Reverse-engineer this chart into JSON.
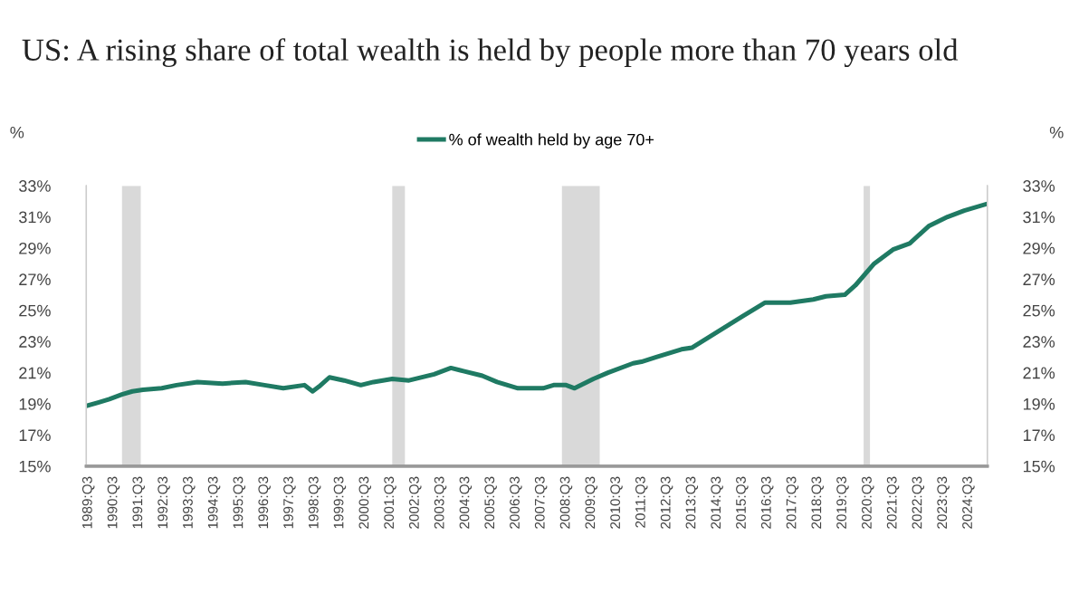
{
  "chart_data": {
    "type": "line",
    "title": "US: A rising share of total wealth is held by people more than 70 years old",
    "ylabel": "%",
    "y2label": "%",
    "series": [
      {
        "name": "% of wealth held by age 70+",
        "color": "#1f7a63",
        "x": [
          "1989-07",
          "1989-12",
          "1990-05",
          "1990-11",
          "1991-04",
          "1991-09",
          "1992-06",
          "1993-01",
          "1993-11",
          "1994-11",
          "1995-10",
          "1996-07",
          "1997-04",
          "1998-02",
          "1998-06",
          "1998-09",
          "1999-02",
          "1999-09",
          "2000-05",
          "2000-11",
          "2001-08",
          "2002-04",
          "2003-04",
          "2003-12",
          "2004-06",
          "2005-03",
          "2005-10",
          "2006-08",
          "2007-08",
          "2008-01",
          "2008-07",
          "2008-11",
          "2009-08",
          "2010-03",
          "2011-03",
          "2011-07",
          "2012-02",
          "2013-02",
          "2013-07",
          "2014-07",
          "2015-07",
          "2016-06",
          "2017-06",
          "2018-05",
          "2018-11",
          "2019-08",
          "2020-01",
          "2020-10",
          "2021-07",
          "2022-03",
          "2022-12",
          "2023-09",
          "2024-05",
          "2025-03"
        ],
        "values": [
          18.9,
          19.1,
          19.3,
          19.6,
          19.8,
          19.9,
          20.0,
          20.2,
          20.4,
          20.3,
          20.4,
          20.2,
          20.0,
          20.2,
          19.8,
          20.1,
          20.7,
          20.5,
          20.2,
          20.4,
          20.6,
          20.5,
          20.9,
          21.3,
          21.1,
          20.8,
          20.4,
          20.0,
          20.0,
          20.2,
          20.2,
          20.0,
          20.6,
          21.0,
          21.6,
          21.7,
          22.0,
          22.5,
          22.6,
          23.6,
          24.6,
          25.5,
          25.5,
          25.7,
          25.9,
          26.0,
          26.6,
          28.0,
          28.9,
          29.3,
          30.4,
          31.0,
          31.4,
          31.8
        ]
      }
    ],
    "xlim": [
      "1989-06",
      "2025-04"
    ],
    "xticks": [
      {
        "value": "1989-07",
        "label": "1989:Q3"
      },
      {
        "value": "1990-07",
        "label": "1990:Q3"
      },
      {
        "value": "1991-07",
        "label": "1991:Q3"
      },
      {
        "value": "1992-07",
        "label": "1992:Q3"
      },
      {
        "value": "1993-07",
        "label": "1993:Q3"
      },
      {
        "value": "1994-07",
        "label": "1994:Q3"
      },
      {
        "value": "1995-07",
        "label": "1995:Q3"
      },
      {
        "value": "1996-07",
        "label": "1996:Q3"
      },
      {
        "value": "1997-07",
        "label": "1997:Q3"
      },
      {
        "value": "1998-07",
        "label": "1998:Q3"
      },
      {
        "value": "1999-07",
        "label": "1999:Q3"
      },
      {
        "value": "2000-07",
        "label": "2000:Q3"
      },
      {
        "value": "2001-07",
        "label": "2001:Q3"
      },
      {
        "value": "2002-07",
        "label": "2002:Q3"
      },
      {
        "value": "2003-07",
        "label": "2003:Q3"
      },
      {
        "value": "2004-07",
        "label": "2004:Q3"
      },
      {
        "value": "2005-07",
        "label": "2005:Q3"
      },
      {
        "value": "2006-07",
        "label": "2006:Q3"
      },
      {
        "value": "2007-07",
        "label": "2007:Q3"
      },
      {
        "value": "2008-07",
        "label": "2008:Q3"
      },
      {
        "value": "2009-07",
        "label": "2009:Q3"
      },
      {
        "value": "2010-07",
        "label": "2010:Q3"
      },
      {
        "value": "2011-07",
        "label": "2011:Q3"
      },
      {
        "value": "2012-07",
        "label": "2012:Q3"
      },
      {
        "value": "2013-07",
        "label": "2013:Q3"
      },
      {
        "value": "2014-07",
        "label": "2014:Q3"
      },
      {
        "value": "2015-07",
        "label": "2015:Q3"
      },
      {
        "value": "2016-07",
        "label": "2016:Q3"
      },
      {
        "value": "2017-07",
        "label": "2017:Q3"
      },
      {
        "value": "2018-07",
        "label": "2018:Q3"
      },
      {
        "value": "2019-07",
        "label": "2019:Q3"
      },
      {
        "value": "2020-07",
        "label": "2020:Q3"
      },
      {
        "value": "2021-07",
        "label": "2021:Q3"
      },
      {
        "value": "2022-07",
        "label": "2022:Q3"
      },
      {
        "value": "2023-07",
        "label": "2023:Q3"
      },
      {
        "value": "2024-07",
        "label": "2024:Q3"
      }
    ],
    "ylim": [
      15,
      33
    ],
    "yticks": [
      {
        "value": 15,
        "label": "15%"
      },
      {
        "value": 17,
        "label": "17%"
      },
      {
        "value": 19,
        "label": "19%"
      },
      {
        "value": 21,
        "label": "21%"
      },
      {
        "value": 23,
        "label": "23%"
      },
      {
        "value": 25,
        "label": "25%"
      },
      {
        "value": 27,
        "label": "27%"
      },
      {
        "value": 29,
        "label": "29%"
      },
      {
        "value": 31,
        "label": "31%"
      },
      {
        "value": 33,
        "label": "33%"
      }
    ],
    "y2lim": [
      15,
      33
    ],
    "y2ticks": [
      {
        "value": 15,
        "label": "15%"
      },
      {
        "value": 17,
        "label": "17%"
      },
      {
        "value": 19,
        "label": "19%"
      },
      {
        "value": 21,
        "label": "21%"
      },
      {
        "value": 23,
        "label": "23%"
      },
      {
        "value": 25,
        "label": "25%"
      },
      {
        "value": 27,
        "label": "27%"
      },
      {
        "value": 29,
        "label": "29%"
      },
      {
        "value": 31,
        "label": "31%"
      },
      {
        "value": 33,
        "label": "33%"
      }
    ],
    "bands": [
      {
        "axis": "x",
        "from": "1990-11",
        "to": "1991-08",
        "color": "#d9d9d9"
      },
      {
        "axis": "x",
        "from": "2001-08",
        "to": "2002-02",
        "color": "#d9d9d9"
      },
      {
        "axis": "x",
        "from": "2008-05",
        "to": "2009-11",
        "color": "#d9d9d9"
      },
      {
        "axis": "x",
        "from": "2020-05",
        "to": "2020-08",
        "color": "#d9d9d9"
      }
    ],
    "grid": false,
    "legend": "top",
    "marker": "none",
    "line_style": "solid"
  }
}
